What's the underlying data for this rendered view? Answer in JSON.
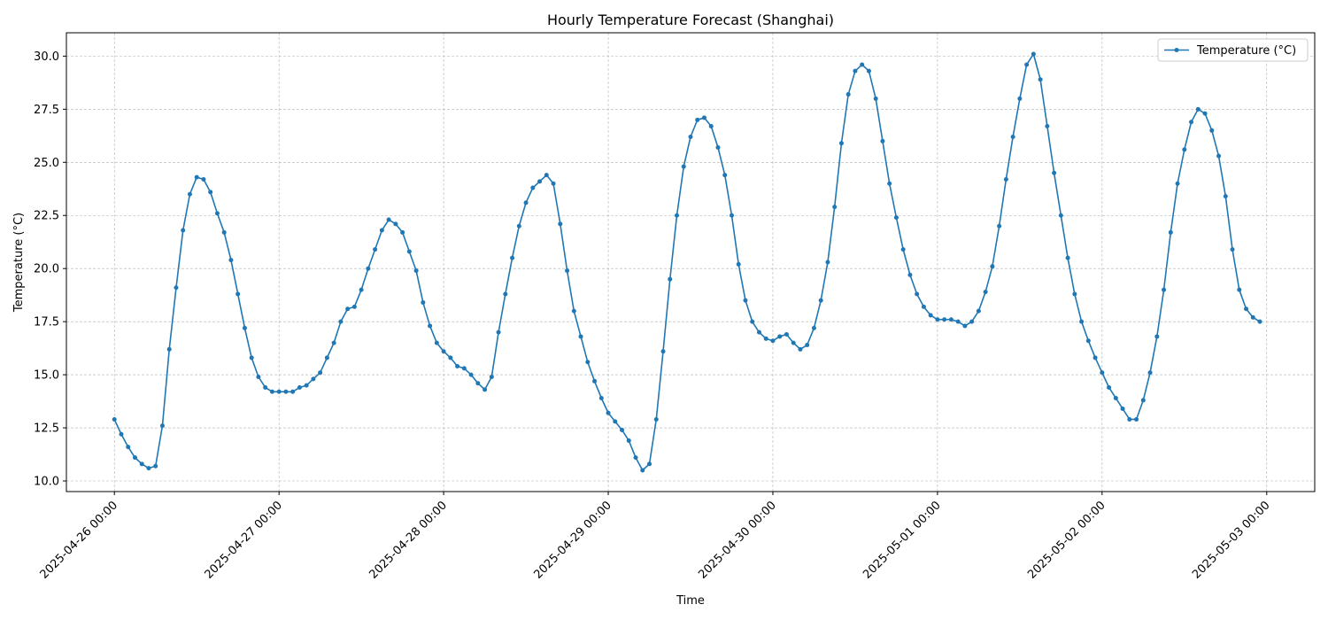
{
  "chart_data": {
    "type": "line",
    "title": "Hourly Temperature Forecast (Shanghai)",
    "xlabel": "Time",
    "ylabel": "Temperature (°C)",
    "ylim": [
      9.5,
      31.1
    ],
    "xlim": [
      "2025-04-25 17:00",
      "2025-05-03 07:00"
    ],
    "yticks": [
      10.0,
      12.5,
      15.0,
      17.5,
      20.0,
      22.5,
      25.0,
      27.5,
      30.0
    ],
    "ytick_labels": [
      "10.0",
      "12.5",
      "15.0",
      "17.5",
      "20.0",
      "22.5",
      "25.0",
      "27.5",
      "30.0"
    ],
    "xticks": [
      "2025-04-26 00:00",
      "2025-04-27 00:00",
      "2025-04-28 00:00",
      "2025-04-29 00:00",
      "2025-04-30 00:00",
      "2025-05-01 00:00",
      "2025-05-02 00:00",
      "2025-05-03 00:00"
    ],
    "xtick_labels": [
      "2025-04-26 00:00",
      "2025-04-27 00:00",
      "2025-04-28 00:00",
      "2025-04-29 00:00",
      "2025-04-30 00:00",
      "2025-05-01 00:00",
      "2025-05-02 00:00",
      "2025-05-03 00:00"
    ],
    "grid": true,
    "legend_position": "upper right",
    "series": [
      {
        "name": "Temperature (°C)",
        "color": "#1f77b4",
        "x_start": "2025-04-26 00:00",
        "x_step_hours": 1,
        "x_end": "2025-05-02 23:00",
        "values": [
          12.9,
          12.2,
          11.6,
          11.1,
          10.8,
          10.6,
          10.7,
          12.6,
          16.2,
          19.1,
          21.8,
          23.5,
          24.3,
          24.2,
          23.6,
          22.6,
          21.7,
          20.4,
          18.8,
          17.2,
          15.8,
          14.9,
          14.4,
          14.2,
          14.2,
          14.2,
          14.2,
          14.4,
          14.5,
          14.8,
          15.1,
          15.8,
          16.5,
          17.5,
          18.1,
          18.2,
          19.0,
          20.0,
          20.9,
          21.8,
          22.3,
          22.1,
          21.7,
          20.8,
          19.9,
          18.4,
          17.3,
          16.5,
          16.1,
          15.8,
          15.4,
          15.3,
          15.0,
          14.6,
          14.3,
          14.9,
          17.0,
          18.8,
          20.5,
          22.0,
          23.1,
          23.8,
          24.1,
          24.4,
          24.0,
          22.1,
          19.9,
          18.0,
          16.8,
          15.6,
          14.7,
          13.9,
          13.2,
          12.8,
          12.4,
          11.9,
          11.1,
          10.5,
          10.8,
          12.9,
          16.1,
          19.5,
          22.5,
          24.8,
          26.2,
          27.0,
          27.1,
          26.7,
          25.7,
          24.4,
          22.5,
          20.2,
          18.5,
          17.5,
          17.0,
          16.7,
          16.6,
          16.8,
          16.9,
          16.5,
          16.2,
          16.4,
          17.2,
          18.5,
          20.3,
          22.9,
          25.9,
          28.2,
          29.3,
          29.6,
          29.3,
          28.0,
          26.0,
          24.0,
          22.4,
          20.9,
          19.7,
          18.8,
          18.2,
          17.8,
          17.6,
          17.6,
          17.6,
          17.5,
          17.3,
          17.5,
          18.0,
          18.9,
          20.1,
          22.0,
          24.2,
          26.2,
          28.0,
          29.6,
          30.1,
          28.9,
          26.7,
          24.5,
          22.5,
          20.5,
          18.8,
          17.5,
          16.6,
          15.8,
          15.1,
          14.4,
          13.9,
          13.4,
          12.9,
          12.9,
          13.8,
          15.1,
          16.8,
          19.0,
          21.7,
          24.0,
          25.6,
          26.9,
          27.5,
          27.3,
          26.5,
          25.3,
          23.4,
          20.9,
          19.0,
          18.1,
          17.7,
          17.5
        ]
      }
    ]
  }
}
